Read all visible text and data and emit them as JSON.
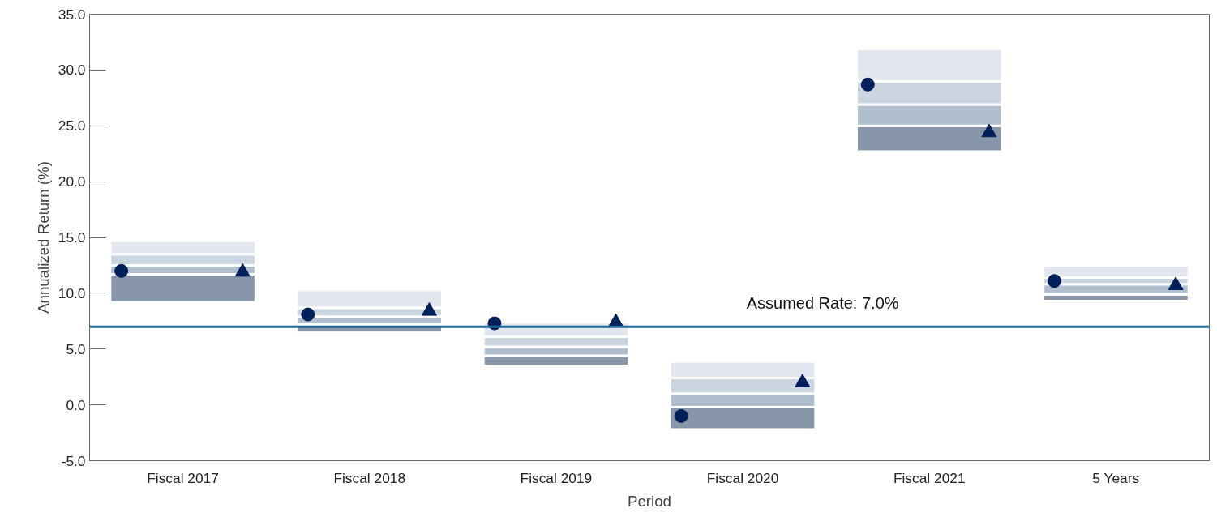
{
  "chart_data": {
    "type": "bar",
    "xlabel": "Period",
    "ylabel": "Annualized Return (%)",
    "categories": [
      "Fiscal 2017",
      "Fiscal 2018",
      "Fiscal 2019",
      "Fiscal 2020",
      "Fiscal 2021",
      "5 Years"
    ],
    "series": [
      {
        "color": "#8796a8",
        "base": [
          9.2,
          6.5,
          3.5,
          -2.2,
          22.7,
          9.3
        ],
        "values": [
          2.5,
          0.7,
          0.9,
          2.0,
          2.3,
          0.6
        ]
      },
      {
        "color": "#b0bfce",
        "base": [
          11.7,
          7.2,
          4.4,
          -0.2,
          25.0,
          9.9
        ],
        "values": [
          0.8,
          0.7,
          0.8,
          1.2,
          1.9,
          0.9
        ]
      },
      {
        "color": "#cad5df",
        "base": [
          12.5,
          7.9,
          5.2,
          1.0,
          26.9,
          10.8
        ],
        "values": [
          1.0,
          0.8,
          0.9,
          1.4,
          2.1,
          0.6
        ]
      },
      {
        "color": "#e2e7ef",
        "base": [
          13.5,
          8.7,
          6.1,
          2.4,
          29.0,
          11.4
        ],
        "values": [
          1.2,
          1.6,
          1.3,
          1.5,
          2.9,
          1.1
        ]
      },
      {
        "type": "scatter",
        "marker": "circle",
        "color": "#00205b",
        "x": [
          "Fiscal 2017",
          "Fiscal 2018",
          "Fiscal 2019",
          "Fiscal 2020",
          "Fiscal 2021",
          "5 Years"
        ],
        "values": [
          12.0,
          8.1,
          7.3,
          -1.0,
          28.7,
          11.1
        ]
      },
      {
        "type": "scatter",
        "marker": "triangle",
        "color": "#00205b",
        "x": [
          "Fiscal 2017",
          "Fiscal 2018",
          "Fiscal 2019",
          "Fiscal 2020",
          "Fiscal 2021",
          "5 Years"
        ],
        "values": [
          11.9,
          8.4,
          7.4,
          2.0,
          24.4,
          10.7
        ]
      }
    ],
    "ylim": [
      -5,
      35
    ],
    "yticks": [
      {
        "value": -5,
        "label": "-5.0"
      },
      {
        "value": 0,
        "label": "0.0"
      },
      {
        "value": 5,
        "label": "5.0"
      },
      {
        "value": 10,
        "label": "10.0"
      },
      {
        "value": 15,
        "label": "15.0"
      },
      {
        "value": 20,
        "label": "20.0"
      },
      {
        "value": 25,
        "label": "25.0"
      },
      {
        "value": 30,
        "label": "30.0"
      },
      {
        "value": 35,
        "label": "35.0"
      }
    ],
    "ref_lines": [
      {
        "axis": "y",
        "value": 7.0,
        "label": "Assumed Rate: 7.0%",
        "color": "#1f6a9a"
      }
    ],
    "grid": false
  }
}
